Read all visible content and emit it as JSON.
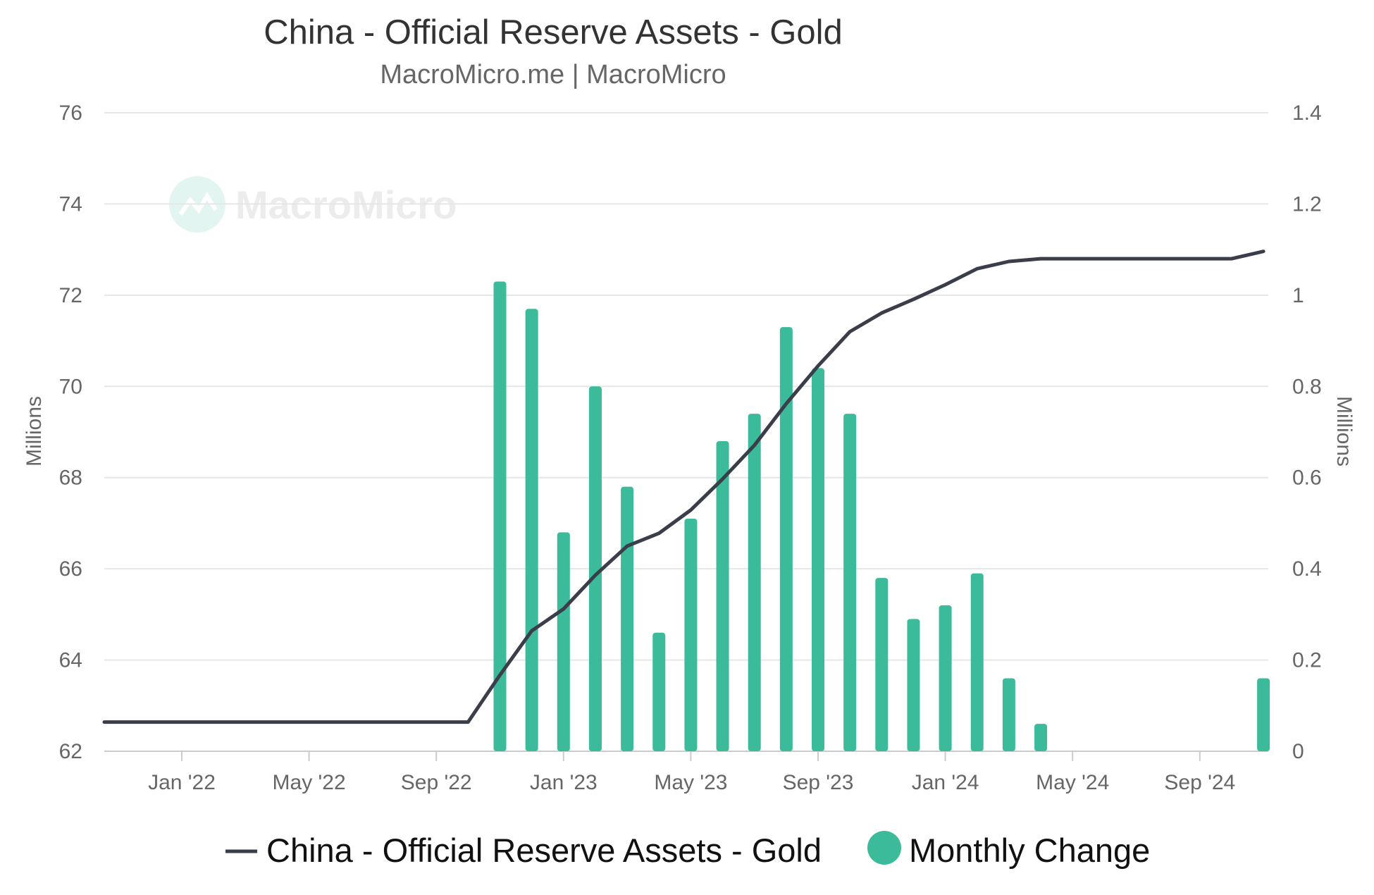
{
  "chart_data": {
    "type": "bar",
    "title": "China - Official Reserve Assets - Gold",
    "subtitle": "MacroMicro.me | MacroMicro",
    "watermark": "MacroMicro",
    "y_left": {
      "label": "Millions",
      "ylim": [
        62,
        76
      ],
      "ticks": [
        "62",
        "64",
        "66",
        "68",
        "70",
        "72",
        "74",
        "76"
      ]
    },
    "y_right": {
      "label": "Millions",
      "ylim": [
        0,
        1.4
      ],
      "ticks": [
        "0",
        "0.2",
        "0.4",
        "0.6",
        "0.8",
        "1",
        "1.2",
        "1.4"
      ]
    },
    "x_ticks": [
      "Jan '22",
      "May '22",
      "Sep '22",
      "Jan '23",
      "May '23",
      "Sep '23",
      "Jan '24",
      "May '24",
      "Sep '24"
    ],
    "grid": true,
    "legend_position": "bottom",
    "series": [
      {
        "name": "China - Official Reserve Assets - Gold",
        "type": "line",
        "axis": "left",
        "color": "#3a3d4a",
        "x": [
          "2021-10",
          "2021-11",
          "2021-12",
          "2022-01",
          "2022-02",
          "2022-03",
          "2022-04",
          "2022-05",
          "2022-06",
          "2022-07",
          "2022-08",
          "2022-09",
          "2022-10",
          "2022-11",
          "2022-12",
          "2023-01",
          "2023-02",
          "2023-03",
          "2023-04",
          "2023-05",
          "2023-06",
          "2023-07",
          "2023-08",
          "2023-09",
          "2023-10",
          "2023-11",
          "2023-12",
          "2024-01",
          "2024-02",
          "2024-03",
          "2024-04",
          "2024-05",
          "2024-06",
          "2024-07",
          "2024-08",
          "2024-09",
          "2024-10",
          "2024-11"
        ],
        "values": [
          62.64,
          62.64,
          62.64,
          62.64,
          62.64,
          62.64,
          62.64,
          62.64,
          62.64,
          62.64,
          62.64,
          62.64,
          62.64,
          63.67,
          64.64,
          65.12,
          65.86,
          66.5,
          66.78,
          67.29,
          67.97,
          68.71,
          69.62,
          70.45,
          71.2,
          71.61,
          71.91,
          72.23,
          72.58,
          72.74,
          72.8,
          72.8,
          72.8,
          72.8,
          72.8,
          72.8,
          72.8,
          72.96
        ]
      },
      {
        "name": "Monthly Change",
        "type": "bar",
        "axis": "right",
        "color": "#3bbb99",
        "x": [
          "2022-11",
          "2022-12",
          "2023-01",
          "2023-02",
          "2023-03",
          "2023-04",
          "2023-05",
          "2023-06",
          "2023-07",
          "2023-08",
          "2023-09",
          "2023-10",
          "2023-11",
          "2023-12",
          "2024-01",
          "2024-02",
          "2024-03",
          "2024-04",
          "2024-11"
        ],
        "values": [
          1.03,
          0.97,
          0.48,
          0.8,
          0.58,
          0.26,
          0.51,
          0.68,
          0.74,
          0.93,
          0.84,
          0.74,
          0.38,
          0.29,
          0.32,
          0.39,
          0.16,
          0.06,
          0.16
        ]
      }
    ]
  }
}
